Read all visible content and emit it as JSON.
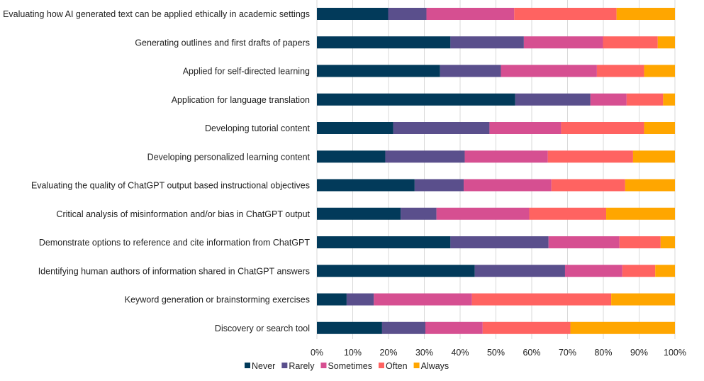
{
  "chart_data": {
    "type": "bar",
    "orientation": "horizontal",
    "stacked": "percent",
    "categories": [
      "Evaluating how AI generated text can be applied ethically in academic settings",
      "Generating outlines and first drafts of papers",
      "Applied for self-directed learning",
      "Application for language translation",
      "Developing tutorial content",
      "Developing personalized learning content",
      "Evaluating the quality of ChatGPT output based instructional objectives",
      "Critical analysis of misinformation and/or bias in ChatGPT output",
      "Demonstrate options to reference and cite information from ChatGPT",
      "Identifying human authors of information shared in ChatGPT answers",
      "Keyword generation or brainstorming exercises",
      "Discovery or search tool"
    ],
    "series": [
      {
        "name": "Never",
        "color": "#023a5a",
        "values": [
          19.9,
          37.3,
          34.4,
          55.4,
          21.3,
          19.1,
          27.3,
          23.4,
          37.3,
          44.1,
          8.3,
          18.2
        ]
      },
      {
        "name": "Rarely",
        "color": "#5a4f8c",
        "values": [
          10.7,
          20.5,
          17.0,
          21.0,
          26.9,
          22.2,
          13.7,
          10.0,
          27.4,
          25.2,
          7.6,
          12.1
        ]
      },
      {
        "name": "Sometimes",
        "color": "#d64f91",
        "values": [
          24.5,
          22.1,
          26.8,
          10.1,
          20.0,
          23.2,
          24.5,
          25.9,
          19.8,
          16.0,
          27.4,
          16.0
        ]
      },
      {
        "name": "Often",
        "color": "#ff6361",
        "values": [
          28.6,
          15.3,
          13.2,
          10.2,
          23.2,
          23.8,
          20.6,
          21.5,
          11.5,
          9.2,
          38.9,
          24.5
        ]
      },
      {
        "name": "Always",
        "color": "#ffa600",
        "values": [
          16.3,
          4.8,
          8.6,
          3.3,
          8.6,
          11.7,
          13.9,
          19.2,
          4.0,
          5.5,
          17.8,
          29.2
        ]
      }
    ],
    "xticks": [
      "0%",
      "10%",
      "20%",
      "30%",
      "40%",
      "50%",
      "60%",
      "70%",
      "80%",
      "90%",
      "100%"
    ],
    "xlim": [
      0,
      100
    ],
    "grid": "vertical",
    "legend": "bottom"
  }
}
